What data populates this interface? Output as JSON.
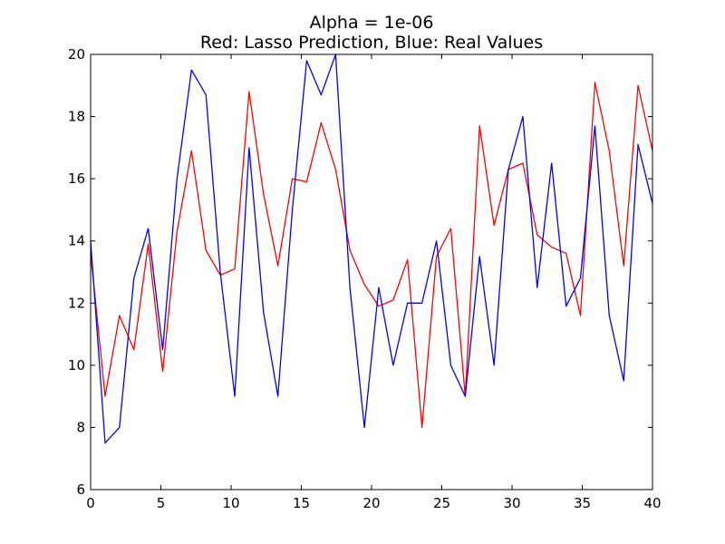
{
  "chart_data": {
    "type": "line",
    "title": "Alpha = 1e-06",
    "subtitle": "Red: Lasso Prediction, Blue: Real Values",
    "xlabel": "",
    "ylabel": "",
    "xlim": [
      0,
      40
    ],
    "ylim": [
      6,
      20
    ],
    "xticks": [
      "0",
      "5",
      "10",
      "15",
      "20",
      "25",
      "30",
      "35",
      "40"
    ],
    "yticks": [
      "6",
      "8",
      "10",
      "12",
      "14",
      "16",
      "18",
      "20"
    ],
    "grid": false,
    "series": [
      {
        "color": "#ff0000",
        "x": [
          0,
          1.03,
          2.05,
          3.08,
          4.1,
          5.13,
          6.15,
          7.18,
          8.21,
          9.23,
          10.26,
          11.28,
          12.31,
          13.33,
          14.36,
          15.38,
          16.41,
          17.44,
          18.46,
          19.49,
          20.51,
          21.54,
          22.56,
          23.59,
          24.62,
          25.64,
          26.67,
          27.69,
          28.72,
          29.74,
          30.77,
          31.79,
          32.82,
          33.85,
          34.87,
          35.9,
          36.92,
          37.95,
          38.97,
          40
        ],
        "values": [
          13.6,
          9.0,
          11.6,
          10.5,
          13.9,
          9.8,
          14.3,
          16.9,
          13.7,
          12.9,
          13.1,
          18.8,
          15.5,
          13.2,
          16.0,
          15.9,
          17.8,
          16.3,
          13.7,
          12.6,
          11.9,
          12.1,
          13.4,
          8.0,
          13.5,
          14.4,
          9.0,
          17.7,
          14.5,
          16.3,
          16.5,
          14.2,
          13.8,
          13.6,
          11.6,
          19.1,
          16.9,
          13.2,
          19.0,
          16.9
        ]
      },
      {
        "color": "#0000ff",
        "x": [
          0,
          1.03,
          2.05,
          3.08,
          4.1,
          5.13,
          6.15,
          7.18,
          8.21,
          9.23,
          10.26,
          11.28,
          12.31,
          13.33,
          14.36,
          15.38,
          16.41,
          17.44,
          18.46,
          19.49,
          20.51,
          21.54,
          22.56,
          23.59,
          24.62,
          25.64,
          26.67,
          27.69,
          28.72,
          29.74,
          30.77,
          31.79,
          32.82,
          33.85,
          34.87,
          35.9,
          36.92,
          37.95,
          38.97,
          40
        ],
        "values": [
          14.0,
          7.5,
          8.0,
          12.8,
          14.4,
          10.5,
          16.0,
          19.5,
          18.7,
          13.0,
          9.0,
          17.0,
          11.7,
          9.0,
          15.0,
          19.8,
          18.7,
          20.0,
          12.5,
          8.0,
          12.5,
          10.0,
          12.0,
          12.0,
          14.0,
          10.0,
          9.0,
          13.5,
          10.0,
          16.3,
          18.0,
          12.5,
          16.5,
          11.9,
          12.8,
          17.7,
          11.6,
          9.5,
          17.1,
          15.2
        ]
      }
    ]
  }
}
